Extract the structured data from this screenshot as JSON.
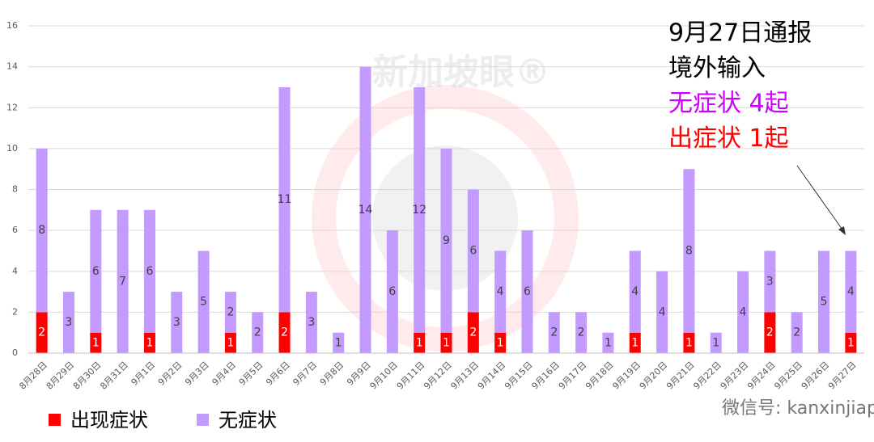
{
  "chart_data": {
    "type": "stacked_bar",
    "categories": [
      "8月28日",
      "8月29日",
      "8月30日",
      "8月31日",
      "9月1日",
      "9月2日",
      "9月3日",
      "9月4日",
      "9月5日",
      "9月6日",
      "9月7日",
      "9月8日",
      "9月9日",
      "9月10日",
      "9月11日",
      "9月12日",
      "9月13日",
      "9月14日",
      "9月15日",
      "9月16日",
      "9月17日",
      "9月18日",
      "9月19日",
      "9月20日",
      "9月21日",
      "9月22日",
      "9月23日",
      "9月24日",
      "9月25日",
      "9月26日",
      "9月27日"
    ],
    "series": [
      {
        "name": "出现症状",
        "color": "#ff0000",
        "label_color": "#ffffff",
        "values": [
          2,
          0,
          1,
          0,
          1,
          0,
          0,
          1,
          0,
          2,
          0,
          0,
          0,
          0,
          1,
          1,
          2,
          1,
          0,
          0,
          0,
          0,
          1,
          0,
          1,
          0,
          0,
          2,
          0,
          0,
          1
        ]
      },
      {
        "name": "无症状",
        "color": "#c39bff",
        "label_color": "#404040",
        "values": [
          8,
          3,
          6,
          7,
          6,
          3,
          5,
          2,
          2,
          11,
          3,
          1,
          14,
          6,
          12,
          9,
          6,
          4,
          6,
          2,
          2,
          1,
          4,
          4,
          8,
          1,
          4,
          3,
          2,
          5,
          4
        ]
      }
    ],
    "ylim": [
      0,
      16
    ],
    "yticks": [
      0,
      2,
      4,
      6,
      8,
      10,
      12,
      14,
      16
    ],
    "grid": true,
    "annotations": [
      {
        "text": "9月27日通报",
        "color": "#000000"
      },
      {
        "text": "境外输入",
        "color": "#000000"
      },
      {
        "text": "无症状 4起",
        "color": "#cc00ff"
      },
      {
        "text": "出症状 1起",
        "color": "#ff0000"
      }
    ],
    "watermark": "新加坡眼®",
    "footer": "微信号: kanxinjiapo"
  }
}
